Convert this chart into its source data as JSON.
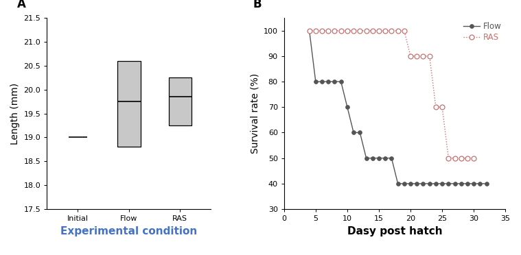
{
  "panel_A": {
    "title": "A",
    "xlabel": "Experimental condition",
    "ylabel": "Length (mm)",
    "ylim": [
      17.5,
      21.5
    ],
    "yticks": [
      17.5,
      18.0,
      18.5,
      19.0,
      19.5,
      20.0,
      20.5,
      21.0,
      21.5
    ],
    "categories": [
      "Initial",
      "Flow",
      "RAS"
    ],
    "box_data": {
      "Initial": {
        "median": 19.0,
        "q1": 19.0,
        "q3": 19.0
      },
      "Flow": {
        "median": 19.75,
        "q1": 18.8,
        "q3": 20.6
      },
      "RAS": {
        "median": 19.85,
        "q1": 19.25,
        "q3": 20.25
      }
    },
    "box_color": "#c8c8c8",
    "xlabel_color": "#4472c4",
    "label_fontsize": 10,
    "tick_fontsize": 8
  },
  "panel_B": {
    "title": "B",
    "xlabel": "Dasy post hatch",
    "ylabel": "Survival rate (%)",
    "ylim": [
      30,
      105
    ],
    "yticks": [
      30,
      40,
      50,
      60,
      70,
      80,
      90,
      100
    ],
    "xlim": [
      0,
      35
    ],
    "xticks": [
      0,
      5,
      10,
      15,
      20,
      25,
      30,
      35
    ],
    "flow_x": [
      4,
      5,
      6,
      7,
      8,
      9,
      10,
      11,
      12,
      13,
      14,
      15,
      16,
      17,
      18,
      19,
      20,
      21,
      22,
      23,
      24,
      25,
      26,
      27,
      28,
      29,
      30,
      31,
      32
    ],
    "flow_y": [
      100,
      80,
      80,
      80,
      80,
      80,
      70,
      60,
      60,
      50,
      50,
      50,
      50,
      50,
      40,
      40,
      40,
      40,
      40,
      40,
      40,
      40,
      40,
      40,
      40,
      40,
      40,
      40,
      40
    ],
    "ras_x": [
      4,
      5,
      6,
      7,
      8,
      9,
      10,
      11,
      12,
      13,
      14,
      15,
      16,
      17,
      18,
      19,
      20,
      21,
      22,
      23,
      24,
      25,
      26,
      27,
      28,
      29,
      30
    ],
    "ras_y": [
      100,
      100,
      100,
      100,
      100,
      100,
      100,
      100,
      100,
      100,
      100,
      100,
      100,
      100,
      100,
      100,
      90,
      90,
      90,
      90,
      70,
      70,
      50,
      50,
      50,
      50,
      50
    ],
    "flow_color": "#555555",
    "ras_color": "#c87070",
    "legend_flow": "Flow",
    "legend_ras": "RAS",
    "label_fontsize": 10,
    "tick_fontsize": 8
  }
}
